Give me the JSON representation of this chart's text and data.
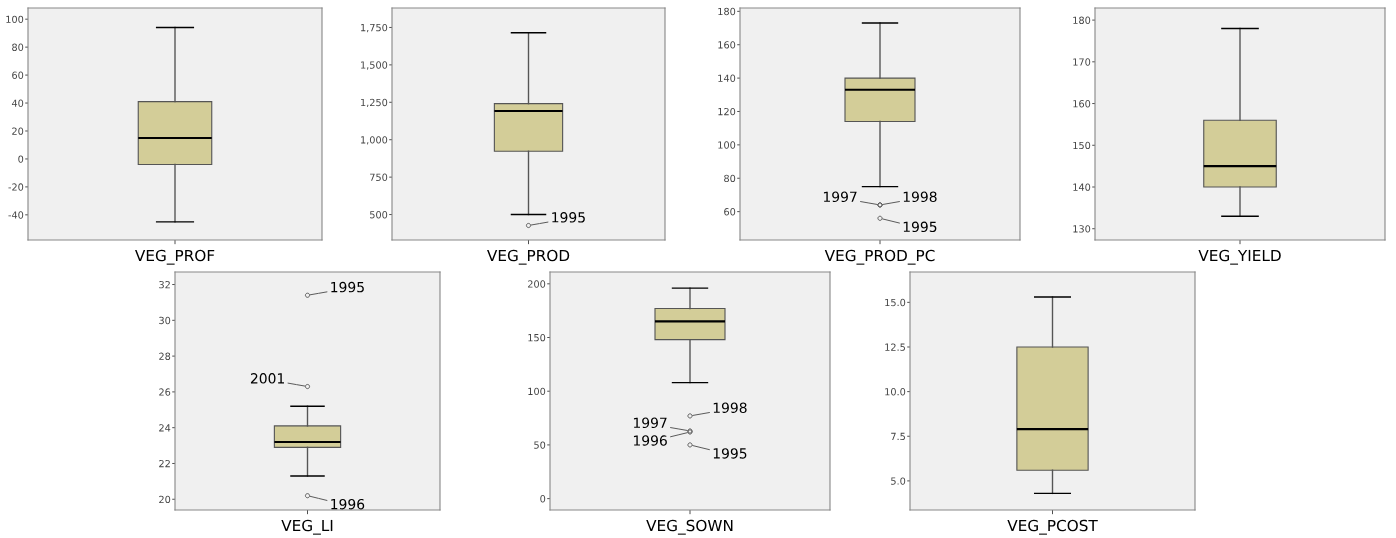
{
  "chart_data": [
    {
      "type": "box",
      "categories": [
        "VEG_PROF"
      ],
      "color": "#d3cd98",
      "ylim": [
        -58,
        108
      ],
      "yticks": [
        -40,
        -20,
        0,
        20,
        40,
        60,
        80,
        100
      ],
      "boxes": [
        {
          "low": -45,
          "q1": -4,
          "median": 15,
          "q3": 41,
          "high": 94
        }
      ]
    },
    {
      "type": "box",
      "categories": [
        "VEG_PROD"
      ],
      "color": "#d3cd98",
      "ylim": [
        330,
        1880
      ],
      "yticks": [
        {
          "value": 500,
          "label": "500"
        },
        {
          "value": 750,
          "label": "750"
        },
        {
          "value": 1000,
          "label": "1,000"
        },
        {
          "value": 1250,
          "label": "1,250"
        },
        {
          "value": 1500,
          "label": "1,500"
        },
        {
          "value": 1750,
          "label": "1,750"
        }
      ],
      "boxes": [
        {
          "low": 500,
          "q1": 923,
          "median": 1192,
          "q3": 1241,
          "high": 1715,
          "outliers": [
            427
          ]
        }
      ],
      "annotations": [
        "1995"
      ]
    },
    {
      "type": "box",
      "categories": [
        "VEG_PROD_PC"
      ],
      "color": "#d3cd98",
      "ylim": [
        43,
        182
      ],
      "yticks": [
        60,
        80,
        100,
        120,
        140,
        160,
        180
      ],
      "boxes": [
        {
          "low": 75,
          "q1": 114,
          "median": 133,
          "q3": 140,
          "high": 173,
          "outliers": [
            64,
            64,
            56
          ]
        }
      ],
      "annotations": [
        "1998",
        "1997",
        "1995"
      ]
    },
    {
      "type": "box",
      "categories": [
        "VEG_YIELD"
      ],
      "color": "#d3cd98",
      "ylim": [
        127.3,
        182.9
      ],
      "yticks": [
        130,
        140,
        150,
        160,
        170,
        180
      ],
      "boxes": [
        {
          "low": 133,
          "q1": 140,
          "median": 145,
          "q3": 156,
          "high": 178
        }
      ]
    },
    {
      "type": "box",
      "categories": [
        "VEG_LI"
      ],
      "color": "#d3cd98",
      "ylim": [
        19.4,
        32.7
      ],
      "yticks": [
        20,
        22,
        24,
        26,
        28,
        30,
        32
      ],
      "boxes": [
        {
          "low": 21.3,
          "q1": 22.9,
          "median": 23.2,
          "q3": 24.1,
          "high": 25.2,
          "outliers": [
            31.4,
            26.3,
            20.2
          ]
        }
      ],
      "annotations": [
        "1995",
        "2001",
        "1996"
      ]
    },
    {
      "type": "box",
      "categories": [
        "VEG_SOWN"
      ],
      "color": "#d3cd98",
      "ylim": [
        -10.6,
        211
      ],
      "yticks": [
        0,
        50,
        100,
        150,
        200
      ],
      "boxes": [
        {
          "low": 108,
          "q1": 148,
          "median": 165,
          "q3": 177,
          "high": 196,
          "outliers": [
            77,
            63,
            50,
            62
          ]
        }
      ],
      "annotations": [
        "1998",
        "1997",
        "1995",
        "1996"
      ]
    },
    {
      "type": "box",
      "categories": [
        "VEG_PCOST"
      ],
      "color": "#d3cd98",
      "ylim": [
        3.37,
        16.7
      ],
      "yticks": [
        {
          "value": 5,
          "label": "5.0"
        },
        {
          "value": 7.5,
          "label": "7.5"
        },
        {
          "value": 10,
          "label": "10.0"
        },
        {
          "value": 12.5,
          "label": "12.5"
        },
        {
          "value": 15,
          "label": "15.0"
        }
      ],
      "boxes": [
        {
          "low": 4.3,
          "q1": 5.6,
          "median": 7.9,
          "q3": 12.5,
          "high": 15.3
        }
      ]
    }
  ]
}
